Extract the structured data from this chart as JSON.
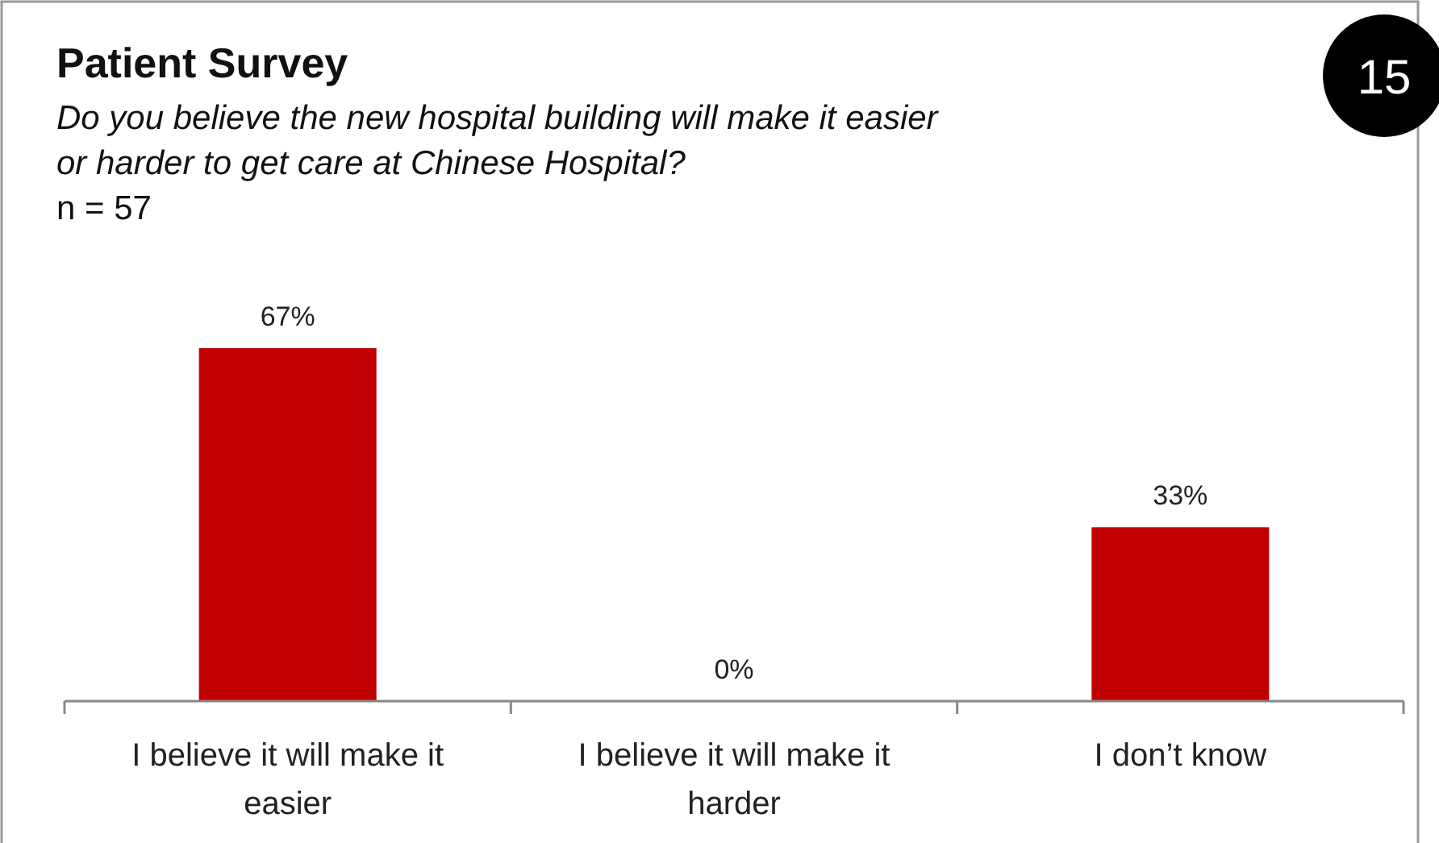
{
  "chart_data": {
    "type": "bar",
    "title": "Patient Survey",
    "subtitle": "Do you believe the new hospital building will make it easier or harder to get care at Chinese Hospital?",
    "annotations": [
      "n = 57",
      "15"
    ],
    "categories": [
      "I believe it will make it easier",
      "I believe it will make it harder",
      "I don’t know"
    ],
    "values": [
      67,
      0,
      33
    ],
    "color": "#c00000",
    "value_labels": [
      "67%",
      "0%",
      "33%"
    ]
  }
}
